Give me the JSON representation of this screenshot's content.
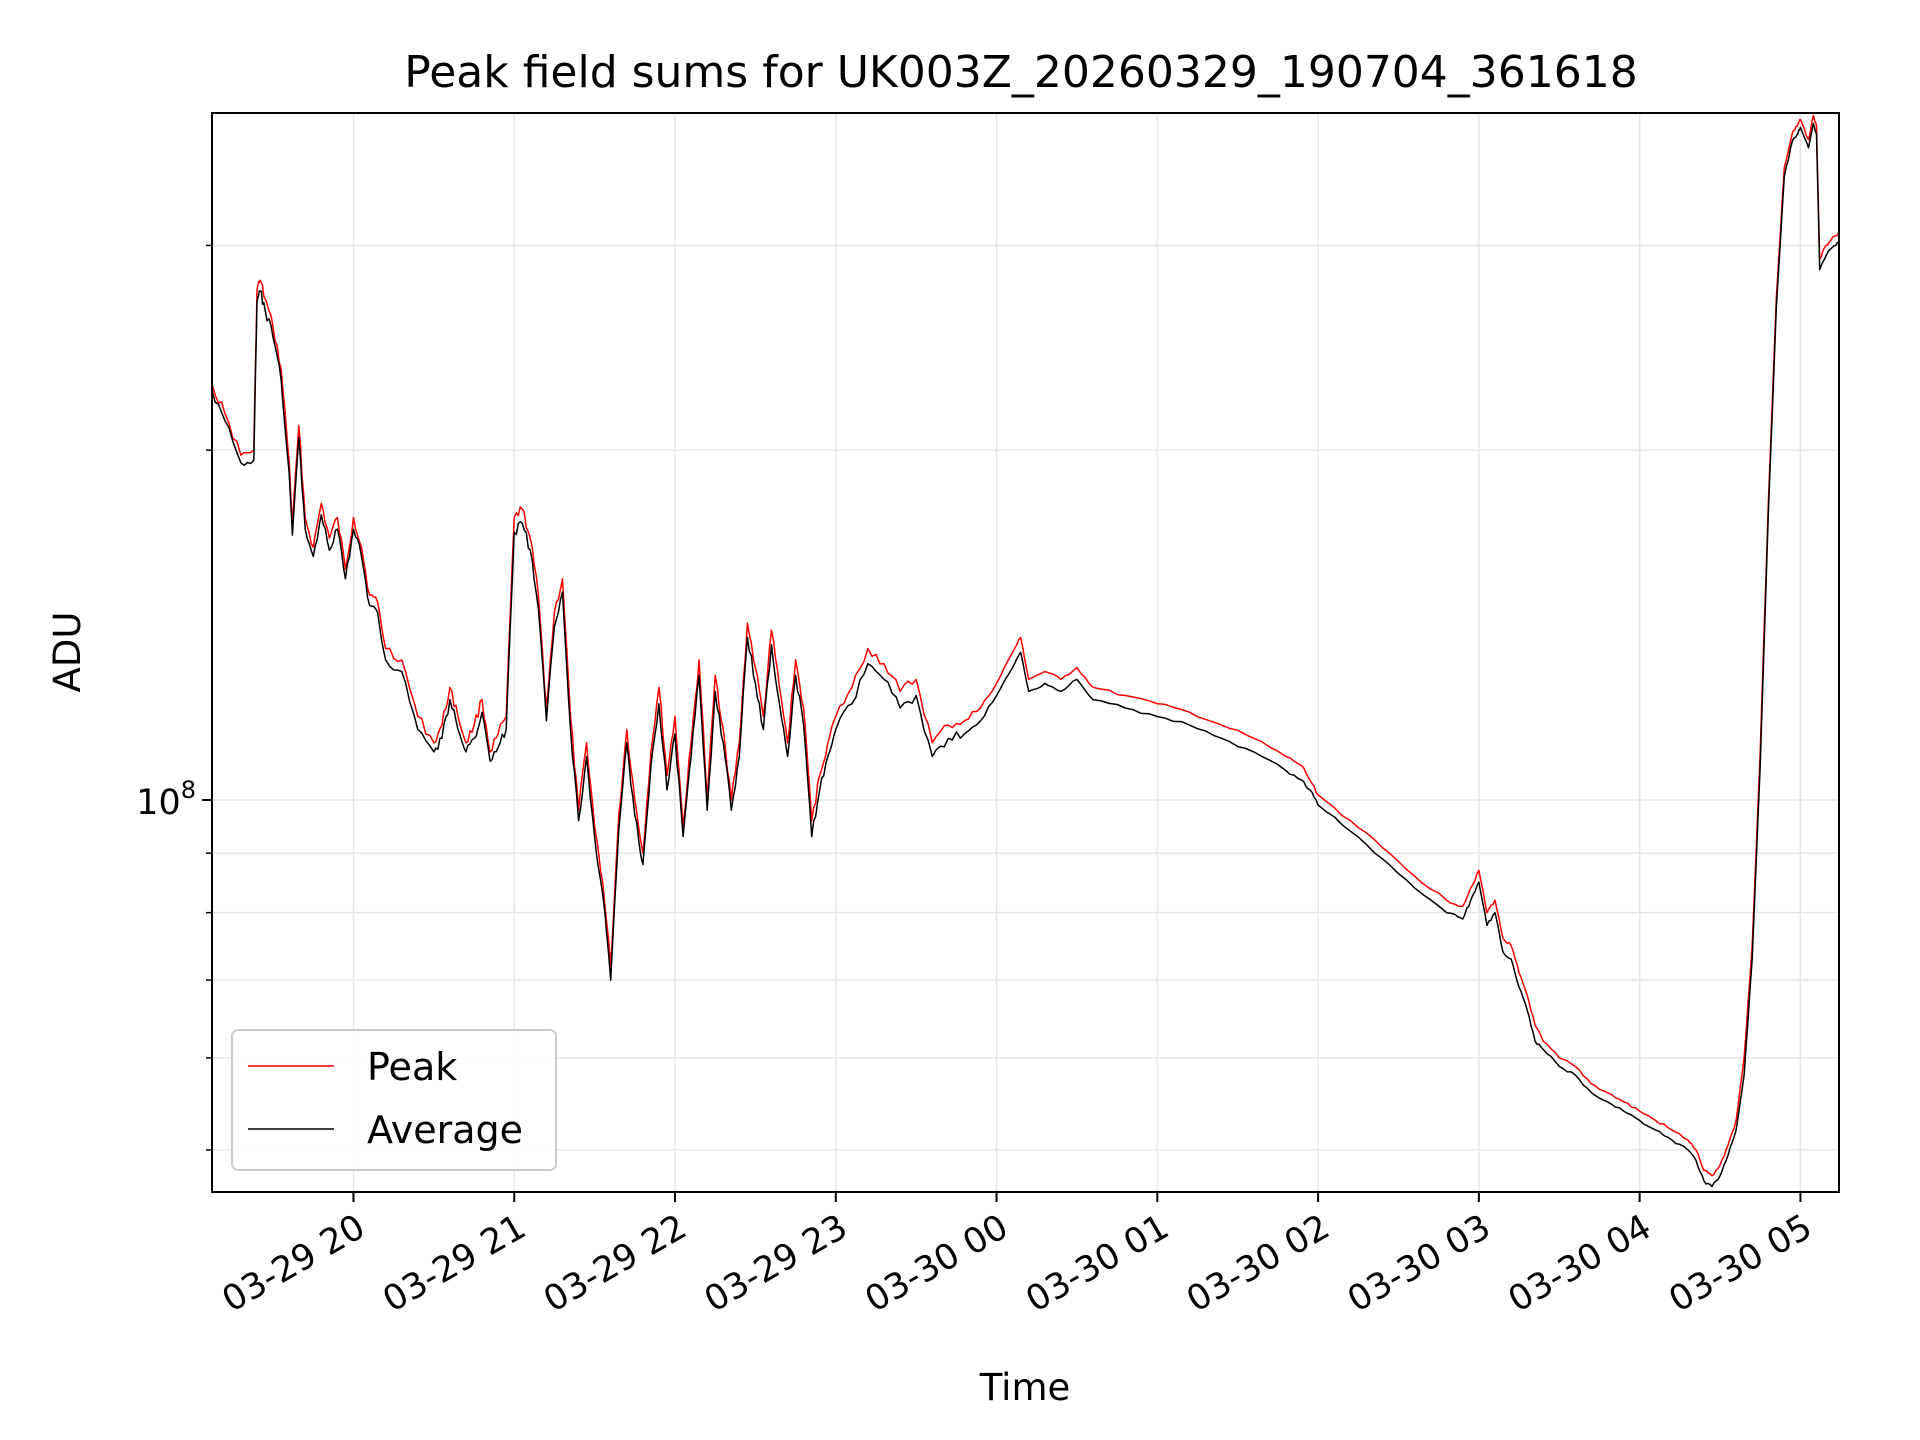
{
  "chart_data": {
    "type": "line",
    "title": "Peak field sums for UK003Z_20260329_190704_361618",
    "xlabel": "Time",
    "ylabel": "ADU",
    "yscale": "log",
    "ylim": [
      46000000,
      390000000
    ],
    "xlim": [
      19.12,
      29.24
    ],
    "grid": true,
    "legend_position": "lower-left",
    "x_ticks": [
      {
        "value": 20,
        "label": "03-29 20"
      },
      {
        "value": 21,
        "label": "03-29 21"
      },
      {
        "value": 22,
        "label": "03-29 22"
      },
      {
        "value": 23,
        "label": "03-29 23"
      },
      {
        "value": 24,
        "label": "03-30 00"
      },
      {
        "value": 25,
        "label": "03-30 01"
      },
      {
        "value": 26,
        "label": "03-30 02"
      },
      {
        "value": 27,
        "label": "03-30 03"
      },
      {
        "value": 28,
        "label": "03-30 04"
      },
      {
        "value": 29,
        "label": "03-30 05"
      }
    ],
    "y_major_ticks": [
      {
        "value": 100000000,
        "base": "10",
        "exp": "8"
      }
    ],
    "y_minor_ticks": [
      50000000,
      60000000,
      70000000,
      80000000,
      90000000,
      200000000,
      300000000
    ],
    "x_unit": "hours since 03-29 00:00",
    "series": [
      {
        "name": "Peak",
        "color": "#ff0000",
        "x": [
          19.12,
          19.2,
          19.3,
          19.38,
          19.4,
          19.42,
          19.45,
          19.5,
          19.55,
          19.6,
          19.62,
          19.66,
          19.7,
          19.75,
          19.8,
          19.85,
          19.9,
          19.95,
          20.0,
          20.05,
          20.1,
          20.15,
          20.2,
          20.3,
          20.4,
          20.5,
          20.55,
          20.6,
          20.65,
          20.7,
          20.75,
          20.8,
          20.85,
          20.9,
          20.95,
          21.0,
          21.05,
          21.1,
          21.15,
          21.2,
          21.25,
          21.3,
          21.35,
          21.4,
          21.45,
          21.5,
          21.55,
          21.6,
          21.65,
          21.7,
          21.75,
          21.8,
          21.85,
          21.9,
          21.95,
          22.0,
          22.05,
          22.1,
          22.15,
          22.2,
          22.25,
          22.3,
          22.35,
          22.4,
          22.45,
          22.5,
          22.55,
          22.6,
          22.65,
          22.7,
          22.75,
          22.8,
          22.85,
          22.9,
          22.95,
          23.0,
          23.1,
          23.2,
          23.3,
          23.4,
          23.5,
          23.6,
          23.7,
          23.8,
          23.9,
          24.0,
          24.1,
          24.15,
          24.2,
          24.3,
          24.4,
          24.5,
          24.6,
          24.8,
          25.0,
          25.2,
          25.4,
          25.6,
          25.8,
          25.9,
          25.95,
          26.0,
          26.2,
          26.4,
          26.6,
          26.8,
          26.9,
          26.95,
          27.0,
          27.05,
          27.1,
          27.15,
          27.2,
          27.25,
          27.3,
          27.35,
          27.4,
          27.5,
          27.6,
          27.7,
          27.8,
          27.9,
          28.0,
          28.1,
          28.2,
          28.3,
          28.35,
          28.4,
          28.45,
          28.5,
          28.55,
          28.6,
          28.65,
          28.7,
          28.75,
          28.8,
          28.85,
          28.9,
          28.95,
          28.98,
          29.0,
          29.05,
          29.08,
          29.1,
          29.12,
          29.16,
          29.2,
          29.24
        ],
        "y": [
          228000000,
          215000000,
          198000000,
          200000000,
          275000000,
          280000000,
          270000000,
          255000000,
          235000000,
          195000000,
          172000000,
          210000000,
          175000000,
          165000000,
          180000000,
          168000000,
          175000000,
          158000000,
          175000000,
          165000000,
          150000000,
          148000000,
          135000000,
          132000000,
          118000000,
          112000000,
          116000000,
          125000000,
          118000000,
          112000000,
          116000000,
          122000000,
          110000000,
          114000000,
          118000000,
          175000000,
          178000000,
          168000000,
          150000000,
          120000000,
          145000000,
          155000000,
          118000000,
          98000000,
          112000000,
          95000000,
          85000000,
          72000000,
          97000000,
          115000000,
          100000000,
          90000000,
          110000000,
          125000000,
          105000000,
          118000000,
          95000000,
          112000000,
          132000000,
          100000000,
          128000000,
          115000000,
          100000000,
          112000000,
          142000000,
          130000000,
          118000000,
          140000000,
          125000000,
          112000000,
          132000000,
          120000000,
          96000000,
          105000000,
          112000000,
          118000000,
          125000000,
          135000000,
          131000000,
          124000000,
          127000000,
          112000000,
          116000000,
          117000000,
          120000000,
          126000000,
          134000000,
          138000000,
          127000000,
          129000000,
          127000000,
          130000000,
          125000000,
          123000000,
          121000000,
          119000000,
          116000000,
          113000000,
          109000000,
          107000000,
          104000000,
          101000000,
          96000000,
          91000000,
          86000000,
          82000000,
          81000000,
          84000000,
          87000000,
          80000000,
          82000000,
          76000000,
          75000000,
          71000000,
          68000000,
          64000000,
          62000000,
          60000000,
          59000000,
          57000000,
          56000000,
          55000000,
          54000000,
          53000000,
          52000000,
          51000000,
          50000000,
          48000000,
          47500000,
          48500000,
          50500000,
          53000000,
          60000000,
          75000000,
          110000000,
          180000000,
          270000000,
          350000000,
          375000000,
          380000000,
          385000000,
          370000000,
          388000000,
          380000000,
          292000000,
          300000000,
          305000000,
          308000000
        ]
      },
      {
        "name": "Average",
        "color": "#000000",
        "x": [
          19.12,
          19.2,
          19.3,
          19.38,
          19.4,
          19.42,
          19.45,
          19.5,
          19.55,
          19.6,
          19.62,
          19.66,
          19.7,
          19.75,
          19.8,
          19.85,
          19.9,
          19.95,
          20.0,
          20.05,
          20.1,
          20.15,
          20.2,
          20.3,
          20.4,
          20.5,
          20.55,
          20.6,
          20.65,
          20.7,
          20.75,
          20.8,
          20.85,
          20.9,
          20.95,
          21.0,
          21.05,
          21.1,
          21.15,
          21.2,
          21.25,
          21.3,
          21.35,
          21.4,
          21.45,
          21.5,
          21.55,
          21.6,
          21.65,
          21.7,
          21.75,
          21.8,
          21.85,
          21.9,
          21.95,
          22.0,
          22.05,
          22.1,
          22.15,
          22.2,
          22.25,
          22.3,
          22.35,
          22.4,
          22.45,
          22.5,
          22.55,
          22.6,
          22.65,
          22.7,
          22.75,
          22.8,
          22.85,
          22.9,
          22.95,
          23.0,
          23.1,
          23.2,
          23.3,
          23.4,
          23.5,
          23.6,
          23.7,
          23.8,
          23.9,
          24.0,
          24.1,
          24.15,
          24.2,
          24.3,
          24.4,
          24.5,
          24.6,
          24.8,
          25.0,
          25.2,
          25.4,
          25.6,
          25.8,
          25.9,
          25.95,
          26.0,
          26.2,
          26.4,
          26.6,
          26.8,
          26.9,
          26.95,
          27.0,
          27.05,
          27.1,
          27.15,
          27.2,
          27.25,
          27.3,
          27.35,
          27.4,
          27.5,
          27.6,
          27.7,
          27.8,
          27.9,
          28.0,
          28.1,
          28.2,
          28.3,
          28.35,
          28.4,
          28.45,
          28.5,
          28.55,
          28.6,
          28.65,
          28.7,
          28.75,
          28.8,
          28.85,
          28.9,
          28.95,
          28.98,
          29.0,
          29.05,
          29.08,
          29.1,
          29.12,
          29.16,
          29.2,
          29.24
        ],
        "y": [
          225000000,
          212000000,
          195000000,
          196000000,
          268000000,
          274000000,
          264000000,
          250000000,
          230000000,
          191000000,
          169000000,
          205000000,
          171000000,
          162000000,
          176000000,
          164000000,
          171000000,
          155000000,
          171000000,
          162000000,
          147000000,
          145000000,
          132000000,
          129000000,
          115000000,
          110000000,
          113000000,
          122000000,
          115000000,
          110000000,
          113000000,
          119000000,
          108000000,
          111000000,
          115000000,
          170000000,
          173000000,
          164000000,
          146000000,
          117000000,
          141000000,
          151000000,
          115000000,
          96000000,
          109000000,
          93000000,
          83000000,
          70000000,
          94000000,
          112000000,
          97000000,
          88000000,
          107000000,
          121000000,
          102000000,
          114000000,
          93000000,
          109000000,
          128000000,
          98000000,
          124000000,
          112000000,
          98000000,
          109000000,
          138000000,
          126000000,
          115000000,
          136000000,
          121000000,
          109000000,
          128000000,
          116000000,
          93000000,
          102000000,
          109000000,
          115000000,
          121000000,
          131000000,
          127000000,
          120000000,
          123000000,
          109000000,
          113000000,
          114000000,
          117000000,
          123000000,
          130000000,
          134000000,
          124000000,
          126000000,
          124000000,
          127000000,
          122000000,
          120000000,
          118000000,
          116000000,
          113000000,
          110000000,
          106000000,
          104000000,
          102000000,
          99000000,
          94000000,
          89000000,
          84000000,
          80000000,
          79000000,
          82000000,
          85000000,
          78000000,
          80000000,
          74000000,
          73000000,
          69000000,
          66000000,
          62000000,
          61000000,
          59000000,
          58000000,
          56000000,
          55000000,
          54000000,
          53000000,
          52000000,
          51000000,
          50000000,
          49000000,
          47000000,
          46500000,
          47500000,
          49500000,
          52000000,
          58000000,
          73000000,
          107000000,
          176000000,
          265000000,
          344000000,
          369000000,
          374000000,
          379000000,
          364000000,
          382000000,
          374000000,
          286000000,
          294000000,
          299000000,
          302000000
        ]
      }
    ]
  }
}
